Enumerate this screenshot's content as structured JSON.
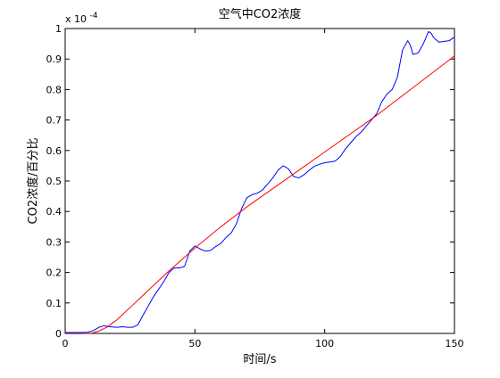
{
  "chart_data": {
    "type": "line",
    "title": "空气中CO2浓度",
    "xlabel": "时间/s",
    "ylabel": "CO2浓度/百分比",
    "y_scale_base": "x 10",
    "y_scale_exponent": "-4",
    "xlim": [
      0,
      150
    ],
    "ylim": [
      0,
      1
    ],
    "x_ticks": [
      "0",
      "50",
      "100",
      "150"
    ],
    "y_ticks": [
      "0",
      "0.1",
      "0.2",
      "0.3",
      "0.4",
      "0.5",
      "0.6",
      "0.7",
      "0.8",
      "0.9",
      "1"
    ],
    "grid": false,
    "legend": "none",
    "series": [
      {
        "color": "#0000ff",
        "x": [
          0,
          3,
          6,
          9,
          11,
          13,
          15,
          17,
          20,
          22,
          24,
          26,
          28,
          30,
          32,
          34,
          36,
          38,
          40,
          42,
          44,
          46,
          48,
          50,
          52,
          54,
          56,
          58,
          60,
          62,
          64,
          66,
          68,
          70,
          72,
          74,
          76,
          78,
          80,
          82,
          84,
          86,
          88,
          90,
          92,
          94,
          96,
          98,
          100,
          102,
          104,
          106,
          108,
          110,
          112,
          114,
          116,
          118,
          120,
          122,
          124,
          126,
          128,
          130,
          132,
          133,
          134,
          136,
          138,
          140,
          141,
          142,
          144,
          146,
          148,
          150
        ],
        "y": [
          0.003,
          0.003,
          0.003,
          0.004,
          0.01,
          0.02,
          0.025,
          0.022,
          0.02,
          0.022,
          0.02,
          0.02,
          0.028,
          0.06,
          0.09,
          0.12,
          0.145,
          0.17,
          0.2,
          0.215,
          0.215,
          0.22,
          0.27,
          0.287,
          0.277,
          0.27,
          0.272,
          0.285,
          0.295,
          0.315,
          0.33,
          0.36,
          0.41,
          0.445,
          0.455,
          0.46,
          0.47,
          0.49,
          0.51,
          0.535,
          0.55,
          0.54,
          0.515,
          0.51,
          0.52,
          0.535,
          0.548,
          0.555,
          0.56,
          0.562,
          0.565,
          0.58,
          0.605,
          0.625,
          0.645,
          0.66,
          0.68,
          0.7,
          0.72,
          0.76,
          0.785,
          0.8,
          0.84,
          0.93,
          0.96,
          0.945,
          0.915,
          0.92,
          0.95,
          0.99,
          0.985,
          0.97,
          0.955,
          0.958,
          0.96,
          0.972
        ]
      },
      {
        "color": "#ff0000",
        "x": [
          0,
          10,
          13,
          16,
          20,
          25,
          30,
          40,
          50,
          60,
          70,
          80,
          90,
          100,
          110,
          120,
          130,
          140,
          150
        ],
        "y": [
          0.0,
          0.0,
          0.008,
          0.02,
          0.045,
          0.085,
          0.125,
          0.205,
          0.28,
          0.35,
          0.415,
          0.475,
          0.535,
          0.595,
          0.655,
          0.715,
          0.78,
          0.845,
          0.91
        ]
      }
    ]
  }
}
